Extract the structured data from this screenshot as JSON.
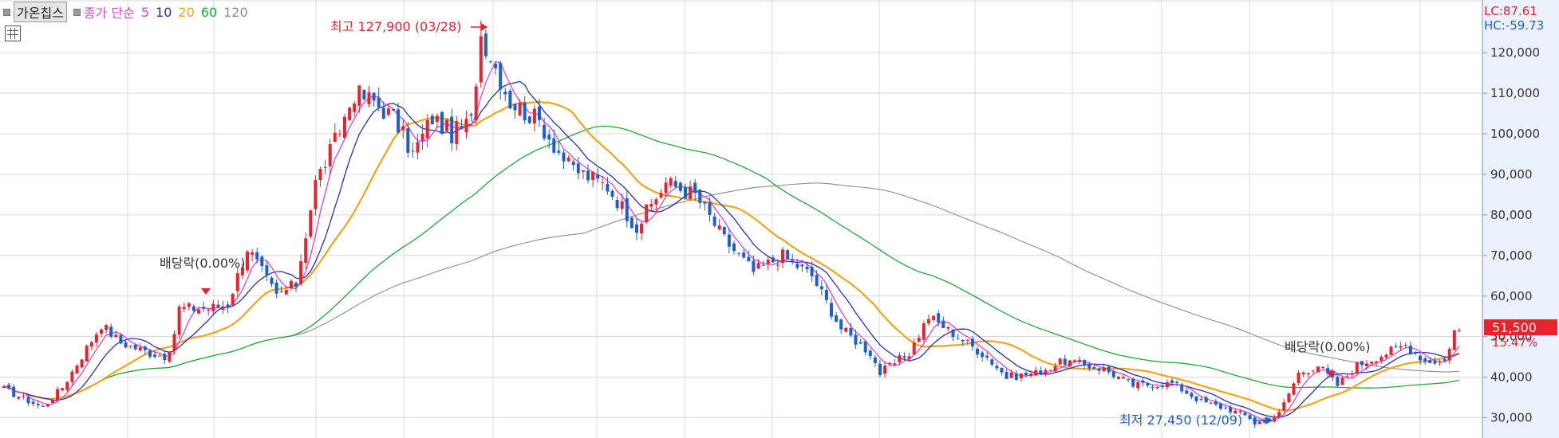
{
  "legend": {
    "name": "가온칩스",
    "ma_label": "종가 단순",
    "periods": [
      "5",
      "10",
      "20",
      "60",
      "120"
    ]
  },
  "indicators": {
    "lc": "LC:87.61",
    "hc": "HC:-59.73"
  },
  "colors": {
    "up": "#e8222e",
    "down": "#1f5fc9",
    "ma5": "#e040e0",
    "ma10": "#2233bb",
    "ma20": "#f0a418",
    "ma60": "#21a83a",
    "ma120": "#8c8c8c",
    "grid": "#d8d8d8",
    "axis_bg": "#ebf1fb"
  },
  "annotations": {
    "high": "최고 127,900 (03/28)",
    "low": "최저 27,450 (12/09)",
    "dividend_1": "배당락(0.00%)",
    "dividend_2": "배당락(0.00%)"
  },
  "price_tag": {
    "value": "51,500",
    "change": "15.47%"
  },
  "chart_data": {
    "type": "candlestick",
    "y_axis": {
      "min": 25000,
      "max": 133000,
      "ticks": [
        30000,
        40000,
        50000,
        60000,
        70000,
        80000,
        90000,
        100000,
        110000,
        120000
      ],
      "tick_labels": [
        "30,000",
        "40,000",
        "50,000",
        "60,000",
        "70,000",
        "80,000",
        "90,000",
        "100,000",
        "110,000",
        "120,000"
      ]
    },
    "high_point": 127900,
    "low_point": 27450,
    "last_close": 51500,
    "grid": true,
    "price_path": [
      [
        0,
        37000
      ],
      [
        8,
        32500
      ],
      [
        12,
        37500
      ],
      [
        20,
        53000
      ],
      [
        24,
        48500
      ],
      [
        30,
        46000
      ],
      [
        34,
        45000
      ],
      [
        36,
        57000
      ],
      [
        42,
        57000
      ],
      [
        46,
        58000
      ],
      [
        50,
        72000
      ],
      [
        56,
        60000
      ],
      [
        60,
        63000
      ],
      [
        64,
        88000
      ],
      [
        68,
        98000
      ],
      [
        72,
        110000
      ],
      [
        76,
        108000
      ],
      [
        80,
        104000
      ],
      [
        84,
        95000
      ],
      [
        88,
        104000
      ],
      [
        92,
        100000
      ],
      [
        96,
        103000
      ],
      [
        98,
        125000
      ],
      [
        104,
        108000
      ],
      [
        110,
        103000
      ],
      [
        116,
        92000
      ],
      [
        124,
        87000
      ],
      [
        130,
        77000
      ],
      [
        136,
        88000
      ],
      [
        142,
        85000
      ],
      [
        148,
        74000
      ],
      [
        154,
        66000
      ],
      [
        160,
        70000
      ],
      [
        166,
        65000
      ],
      [
        172,
        52000
      ],
      [
        178,
        46000
      ],
      [
        180,
        41000
      ],
      [
        186,
        46000
      ],
      [
        190,
        55000
      ],
      [
        196,
        50000
      ],
      [
        202,
        45000
      ],
      [
        206,
        40000
      ],
      [
        212,
        41000
      ],
      [
        218,
        44000
      ],
      [
        226,
        42000
      ],
      [
        232,
        38000
      ],
      [
        240,
        38500
      ],
      [
        246,
        34000
      ],
      [
        252,
        32000
      ],
      [
        258,
        29000
      ],
      [
        262,
        31000
      ],
      [
        266,
        41000
      ],
      [
        270,
        43000
      ],
      [
        274,
        38000
      ],
      [
        278,
        43000
      ],
      [
        284,
        46000
      ],
      [
        288,
        48000
      ],
      [
        292,
        44000
      ],
      [
        296,
        44000
      ],
      [
        298,
        51500
      ]
    ]
  }
}
